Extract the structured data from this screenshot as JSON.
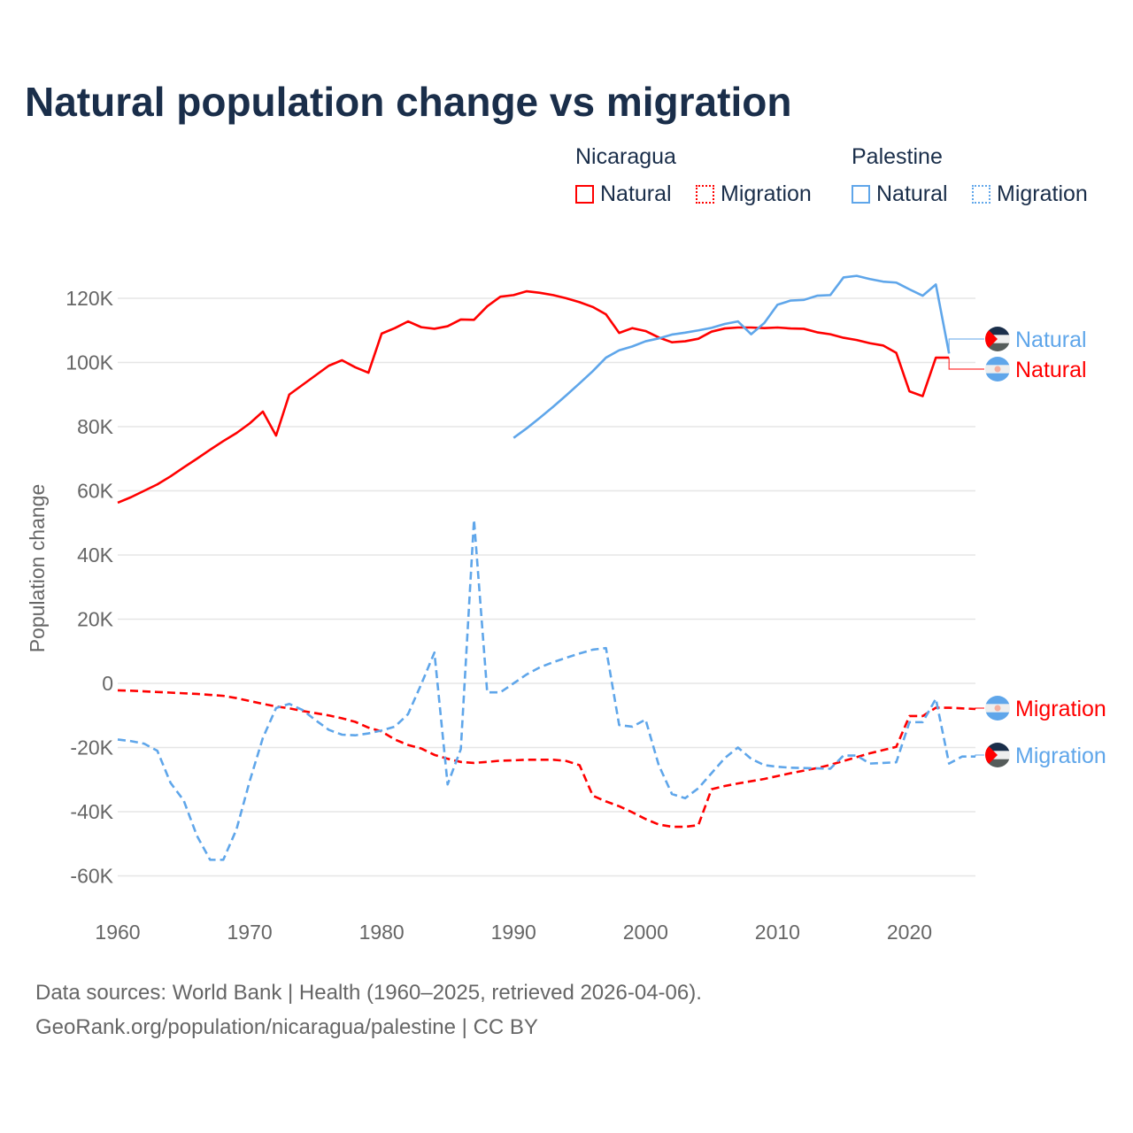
{
  "title": "Natural population change vs migration",
  "legend": {
    "groups": [
      {
        "name": "Nicaragua",
        "color": "#ff0000",
        "items": [
          "Natural",
          "Migration"
        ]
      },
      {
        "name": "Palestine",
        "color": "#5fa6ea",
        "items": [
          "Natural",
          "Migration"
        ]
      }
    ]
  },
  "footer": {
    "line1": "Data sources: World Bank | Health (1960–2025, retrieved 2026-04-06).",
    "line2": "GeoRank.org/population/nicaragua/palestine | CC BY"
  },
  "chart_data": {
    "type": "line",
    "title": "Natural population change vs migration",
    "xlabel": "",
    "ylabel": "Population change",
    "xlim": [
      1960,
      2025
    ],
    "ylim": [
      -70000,
      130000
    ],
    "x_ticks": [
      1960,
      1970,
      1980,
      1990,
      2000,
      2010,
      2020
    ],
    "x_tick_labels": [
      "1960",
      "1970",
      "1980",
      "1990",
      "2000",
      "2010",
      "2020"
    ],
    "y_ticks": [
      -60000,
      -40000,
      -20000,
      0,
      20000,
      40000,
      60000,
      80000,
      100000,
      120000
    ],
    "y_tick_labels": [
      "-60K",
      "-40K",
      "-20K",
      "0",
      "20K",
      "40K",
      "60K",
      "80K",
      "100K",
      "120K"
    ],
    "grid": true,
    "legend_position": "top-right",
    "series": [
      {
        "name": "Nicaragua Natural",
        "label": "Natural",
        "country": "Nicaragua",
        "color": "#ff0000",
        "dash": false,
        "flag": "nicaragua",
        "x_start": 1960,
        "values": [
          56300,
          58000,
          60000,
          62000,
          64500,
          67300,
          70000,
          72800,
          75500,
          78000,
          81000,
          84700,
          77200,
          90000,
          93000,
          96000,
          99000,
          100700,
          98500,
          96800,
          109000,
          110700,
          112800,
          111000,
          110500,
          111300,
          113400,
          113300,
          117500,
          120500,
          121000,
          122200,
          121700,
          121000,
          120000,
          118800,
          117300,
          115000,
          109200,
          110700,
          109800,
          107800,
          106300,
          106600,
          107400,
          109600,
          110600,
          110900,
          110900,
          110700,
          110900,
          110600,
          110500,
          109400,
          108800,
          107700,
          107000,
          106000,
          105300,
          103000,
          91000,
          89500,
          101500,
          101500
        ],
        "end_value": 97500
      },
      {
        "name": "Nicaragua Migration",
        "label": "Migration",
        "country": "Nicaragua",
        "color": "#ff0000",
        "dash": true,
        "flag": "nicaragua",
        "x_start": 1960,
        "values": [
          -2200,
          -2300,
          -2500,
          -2700,
          -2900,
          -3100,
          -3300,
          -3600,
          -3900,
          -4600,
          -5500,
          -6400,
          -7200,
          -7800,
          -8600,
          -9300,
          -10000,
          -10900,
          -12000,
          -13800,
          -15000,
          -17500,
          -19200,
          -20300,
          -22300,
          -23500,
          -24500,
          -24800,
          -24500,
          -24100,
          -24000,
          -23800,
          -23800,
          -23800,
          -24200,
          -25500,
          -35000,
          -36800,
          -38300,
          -40200,
          -42300,
          -44000,
          -44700,
          -44700,
          -44200,
          -33000,
          -32000,
          -31200,
          -30500,
          -29800,
          -28900,
          -28000,
          -27200,
          -26400,
          -25400,
          -24200,
          -23000,
          -21800,
          -20800,
          -19800,
          -10200,
          -10200,
          -7600,
          -7600,
          -7800,
          -8000
        ],
        "end_value": -8000
      },
      {
        "name": "Palestine Natural",
        "label": "Natural",
        "country": "Palestine",
        "color": "#5fa6ea",
        "dash": false,
        "flag": "palestine",
        "x_start": 1990,
        "values": [
          76500,
          79500,
          82800,
          86200,
          89800,
          93500,
          97300,
          101500,
          103800,
          105000,
          106600,
          107500,
          108700,
          109300,
          110000,
          110800,
          112000,
          112800,
          108800,
          112300,
          118000,
          119300,
          119500,
          120800,
          121000,
          126500,
          127000,
          126000,
          125200,
          124900,
          122800,
          120800,
          124300,
          102800
        ],
        "end_value": 107000
      },
      {
        "name": "Palestine Migration",
        "label": "Migration",
        "country": "Palestine",
        "color": "#5fa6ea",
        "dash": true,
        "flag": "palestine",
        "x_start": 1960,
        "values": [
          -17500,
          -18000,
          -18800,
          -21000,
          -31000,
          -36500,
          -47500,
          -55000,
          -55000,
          -45500,
          -30500,
          -17000,
          -7700,
          -6400,
          -8300,
          -11500,
          -14500,
          -16000,
          -16200,
          -15600,
          -14700,
          -13500,
          -9600,
          -300,
          9600,
          -31500,
          -20500,
          51000,
          -2800,
          -2800,
          0,
          2800,
          5000,
          6600,
          8000,
          9300,
          10500,
          11000,
          -13000,
          -13500,
          -11300,
          -25500,
          -34500,
          -35800,
          -32700,
          -28000,
          -23300,
          -20000,
          -23500,
          -25500,
          -26000,
          -26300,
          -26400,
          -26500,
          -26600,
          -22500,
          -22500,
          -25000,
          -24800,
          -24600,
          -12100,
          -12100,
          -4800,
          -25000,
          -22800,
          -22800
        ],
        "end_value": -22800
      }
    ]
  }
}
